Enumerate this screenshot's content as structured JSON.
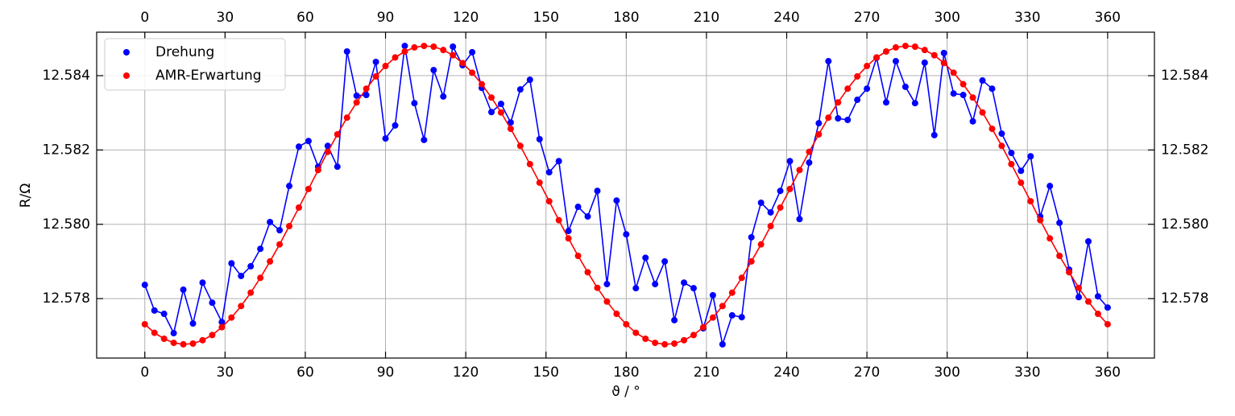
{
  "chart_data": {
    "type": "line",
    "x_label": "ϑ / °",
    "y_label": "R/Ω",
    "x": [
      0,
      3.6,
      7.2,
      10.8,
      14.4,
      18,
      21.6,
      25.2,
      28.8,
      32.4,
      36,
      39.6,
      43.2,
      46.8,
      50.4,
      54,
      57.6,
      61.2,
      64.8,
      68.4,
      72,
      75.6,
      79.2,
      82.8,
      86.4,
      90,
      93.6,
      97.2,
      100.8,
      104.4,
      108,
      111.6,
      115.2,
      118.8,
      122.4,
      126,
      129.6,
      133.2,
      136.8,
      140.4,
      144,
      147.6,
      151.2,
      154.8,
      158.4,
      162,
      165.6,
      169.2,
      172.8,
      176.4,
      180,
      183.6,
      187.2,
      190.8,
      194.4,
      198,
      201.6,
      205.2,
      208.8,
      212.4,
      216,
      219.6,
      223.2,
      226.8,
      230.4,
      234,
      237.6,
      241.2,
      244.8,
      248.4,
      252,
      255.6,
      259.2,
      262.8,
      266.4,
      270,
      273.6,
      277.2,
      280.8,
      284.4,
      288,
      291.6,
      295.2,
      298.8,
      302.4,
      306,
      309.6,
      313.2,
      316.8,
      320.4,
      324,
      327.6,
      331.2,
      334.8,
      338.4,
      342,
      345.6,
      349.2,
      352.8,
      356.4,
      360
    ],
    "series": [
      {
        "name": "Drehung",
        "color": "#0000ff",
        "values": [
          12.57837,
          12.57768,
          12.57759,
          12.57707,
          12.57824,
          12.57733,
          12.57843,
          12.57789,
          12.57737,
          12.57895,
          12.57861,
          12.57887,
          12.57934,
          12.58006,
          12.57984,
          12.58103,
          12.58209,
          12.58224,
          12.58155,
          12.58211,
          12.58155,
          12.58465,
          12.58346,
          12.58348,
          12.58437,
          12.58231,
          12.58266,
          12.5848,
          12.58326,
          12.58227,
          12.58415,
          12.58344,
          12.58478,
          12.58428,
          12.58463,
          12.58367,
          12.58302,
          12.58324,
          12.58274,
          12.58363,
          12.58389,
          12.58229,
          12.5814,
          12.5817,
          12.57982,
          12.58047,
          12.58021,
          12.5809,
          12.57839,
          12.58064,
          12.57973,
          12.57828,
          12.5791,
          12.57839,
          12.579,
          12.57742,
          12.57843,
          12.57828,
          12.5772,
          12.57809,
          12.57677,
          12.57755,
          12.5775,
          12.57965,
          12.58058,
          12.58032,
          12.5809,
          12.5817,
          12.58014,
          12.58166,
          12.58272,
          12.58439,
          12.58285,
          12.58281,
          12.58335,
          12.58365,
          12.58448,
          12.58328,
          12.58439,
          12.5837,
          12.58326,
          12.58435,
          12.5824,
          12.58461,
          12.58352,
          12.58348,
          12.58277,
          12.58387,
          12.58365,
          12.58244,
          12.58192,
          12.58144,
          12.58183,
          12.58021,
          12.58103,
          12.58004,
          12.57878,
          12.57804,
          12.57954,
          12.57806,
          12.57776
        ]
      },
      {
        "name": "AMR-Erwartung",
        "color": "#ff0000",
        "values": [
          12.57731,
          12.57708,
          12.57692,
          12.57681,
          12.57677,
          12.57679,
          12.57688,
          12.57702,
          12.57723,
          12.57749,
          12.5778,
          12.57816,
          12.57856,
          12.579,
          12.57946,
          12.57995,
          12.58045,
          12.58095,
          12.58146,
          12.58195,
          12.58242,
          12.58287,
          12.58328,
          12.58365,
          12.58398,
          12.58426,
          12.58449,
          12.58465,
          12.58476,
          12.5848,
          12.58478,
          12.58469,
          12.58455,
          12.58434,
          12.58408,
          12.58377,
          12.58341,
          12.58301,
          12.58257,
          12.58211,
          12.58162,
          12.58112,
          12.58062,
          12.58011,
          12.57962,
          12.57915,
          12.57871,
          12.57829,
          12.57792,
          12.57759,
          12.57731,
          12.57708,
          12.57692,
          12.57681,
          12.57677,
          12.57679,
          12.57688,
          12.57702,
          12.57723,
          12.57749,
          12.5778,
          12.57816,
          12.57856,
          12.579,
          12.57946,
          12.57995,
          12.58045,
          12.58095,
          12.58146,
          12.58195,
          12.58242,
          12.58287,
          12.58328,
          12.58365,
          12.58398,
          12.58426,
          12.58449,
          12.58465,
          12.58476,
          12.5848,
          12.58478,
          12.58469,
          12.58455,
          12.58434,
          12.58408,
          12.58377,
          12.58341,
          12.58301,
          12.58257,
          12.58211,
          12.58162,
          12.58112,
          12.58062,
          12.58011,
          12.57962,
          12.57915,
          12.57871,
          12.57829,
          12.57792,
          12.57759,
          12.57731
        ]
      }
    ],
    "xlim": [
      -18,
      377.5
    ],
    "ylim": [
      12.5764,
      12.58517
    ],
    "xticks": [
      0,
      30,
      60,
      90,
      120,
      150,
      180,
      210,
      240,
      270,
      300,
      330,
      360
    ],
    "yticks": [
      12.578,
      {
        "value": 12.58,
        "label": "12.580"
      },
      12.582,
      12.584
    ],
    "grid": true,
    "legend": "upper left"
  }
}
